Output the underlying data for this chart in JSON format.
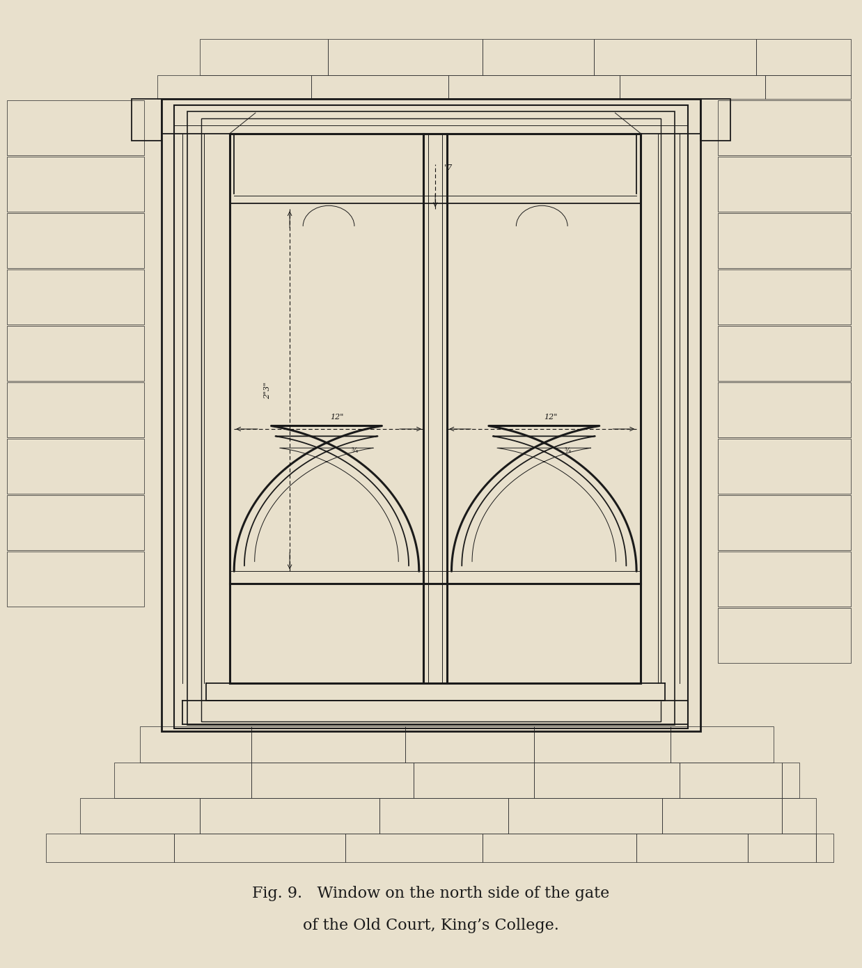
{
  "bg_color": "#e8e0cc",
  "line_color": "#1a1a1a",
  "title_line1": "Fig. 9.   Window on the north side of the gate",
  "title_line2": "of the Old Court, King’s College.",
  "title_fontsize": 16,
  "fig_width": 12.38,
  "fig_height": 13.9,
  "caption_color": "#1a1a1a"
}
